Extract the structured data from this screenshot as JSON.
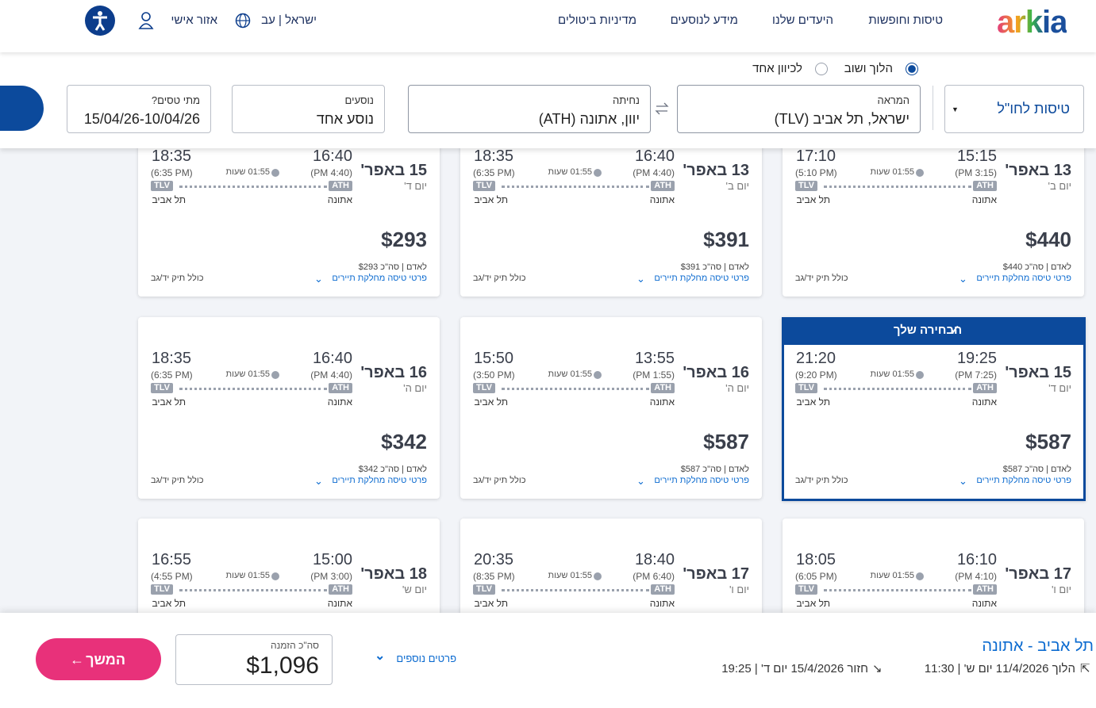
{
  "header": {
    "logo": "arkia",
    "nav": [
      "טיסות וחופשות",
      "היעדים שלנו",
      "מידע לנוסעים",
      "מדיניות ביטולים"
    ],
    "language": "ישראל | עב",
    "account": "אזור אישי"
  },
  "search": {
    "trip_types": [
      "הלוך ושוב",
      "לכיוון אחד"
    ],
    "flight_type": "טיסות לחו\"ל",
    "origin": {
      "label": "המראה",
      "value": "ישראל, תל אביב (TLV)"
    },
    "destination": {
      "label": "נחיתה",
      "value": "יוון, אתונה (ATH)"
    },
    "passengers": {
      "label": "נוסעים",
      "value": "נוסע אחד"
    },
    "dates": {
      "label": "מתי טסים?",
      "value": "15/04/26-10/04/26"
    }
  },
  "flights": [
    {
      "date": "13 באפר'",
      "day": "יום ב'",
      "depart": "15:15",
      "depart_12h": "(3:15 PM)",
      "arrive": "17:10",
      "arrive_12h": "(5:10 PM)",
      "duration": "01:55 שעות",
      "from_code": "ATH",
      "to_code": "TLV",
      "from_city": "אתונה",
      "to_city": "תל אביב",
      "price": "$440",
      "price_note": "לאדם | סה\"כ $440",
      "details": "פרטי טיסה מחלקת תיירים",
      "baggage": "כולל תיק יד/גב"
    },
    {
      "date": "13 באפר'",
      "day": "יום ב'",
      "depart": "16:40",
      "depart_12h": "(4:40 PM)",
      "arrive": "18:35",
      "arrive_12h": "(6:35 PM)",
      "duration": "01:55 שעות",
      "from_code": "ATH",
      "to_code": "TLV",
      "from_city": "אתונה",
      "to_city": "תל אביב",
      "price": "$391",
      "price_note": "לאדם | סה\"כ $391",
      "details": "פרטי טיסה מחלקת תיירים",
      "baggage": "כולל תיק יד/גב"
    },
    {
      "date": "15 באפר'",
      "day": "יום ד'",
      "depart": "16:40",
      "depart_12h": "(4:40 PM)",
      "arrive": "18:35",
      "arrive_12h": "(6:35 PM)",
      "duration": "01:55 שעות",
      "from_code": "ATH",
      "to_code": "TLV",
      "from_city": "אתונה",
      "to_city": "תל אביב",
      "price": "$293",
      "price_note": "לאדם | סה\"כ $293",
      "details": "פרטי טיסה מחלקת תיירים",
      "baggage": "כולל תיק יד/גב"
    },
    {
      "selected_label": "הבחירה שלך",
      "date": "15 באפר'",
      "day": "יום ד'",
      "depart": "19:25",
      "depart_12h": "(7:25 PM)",
      "arrive": "21:20",
      "arrive_12h": "(9:20 PM)",
      "duration": "01:55 שעות",
      "from_code": "ATH",
      "to_code": "TLV",
      "from_city": "אתונה",
      "to_city": "תל אביב",
      "price": "$587",
      "price_note": "לאדם | סה\"כ $587",
      "details": "פרטי טיסה מחלקת תיירים",
      "baggage": "כולל תיק יד/גב"
    },
    {
      "date": "16 באפר'",
      "day": "יום ה'",
      "depart": "13:55",
      "depart_12h": "(1:55 PM)",
      "arrive": "15:50",
      "arrive_12h": "(3:50 PM)",
      "duration": "01:55 שעות",
      "from_code": "ATH",
      "to_code": "TLV",
      "from_city": "אתונה",
      "to_city": "תל אביב",
      "price": "$587",
      "price_note": "לאדם | סה\"כ $587",
      "details": "פרטי טיסה מחלקת תיירים",
      "baggage": "כולל תיק יד/גב"
    },
    {
      "date": "16 באפר'",
      "day": "יום ה'",
      "depart": "16:40",
      "depart_12h": "(4:40 PM)",
      "arrive": "18:35",
      "arrive_12h": "(6:35 PM)",
      "duration": "01:55 שעות",
      "from_code": "ATH",
      "to_code": "TLV",
      "from_city": "אתונה",
      "to_city": "תל אביב",
      "price": "$342",
      "price_note": "לאדם | סה\"כ $342",
      "details": "פרטי טיסה מחלקת תיירים",
      "baggage": "כולל תיק יד/גב"
    },
    {
      "date": "17 באפר'",
      "day": "יום ו'",
      "depart": "16:10",
      "depart_12h": "(4:10 PM)",
      "arrive": "18:05",
      "arrive_12h": "(6:05 PM)",
      "duration": "01:55 שעות",
      "from_code": "ATH",
      "to_code": "TLV",
      "from_city": "אתונה",
      "to_city": "תל אביב"
    },
    {
      "date": "17 באפר'",
      "day": "יום ו'",
      "depart": "18:40",
      "depart_12h": "(6:40 PM)",
      "arrive": "20:35",
      "arrive_12h": "(8:35 PM)",
      "duration": "01:55 שעות",
      "from_code": "ATH",
      "to_code": "TLV",
      "from_city": "אתונה",
      "to_city": "תל אביב"
    },
    {
      "date": "18 באפר'",
      "day": "יום ש'",
      "depart": "15:00",
      "depart_12h": "(3:00 PM)",
      "arrive": "16:55",
      "arrive_12h": "(4:55 PM)",
      "duration": "01:55 שעות",
      "from_code": "ATH",
      "to_code": "TLV",
      "from_city": "אתונה",
      "to_city": "תל אביב"
    }
  ],
  "summary": {
    "route": "תל אביב - אתונה",
    "outbound": "הלוך 11/4/2026 יום ש' | 11:30",
    "return": "חזור 15/4/2026 יום ד' | 19:25",
    "more": "פרטים נוספים",
    "total_label": "סה\"כ הזמנה",
    "total": "$1,096",
    "continue": "המשך"
  }
}
